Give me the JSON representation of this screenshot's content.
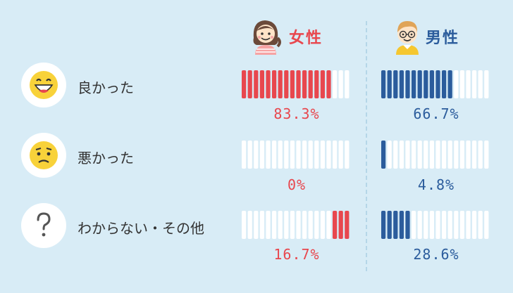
{
  "headers": {
    "female": "女性",
    "male": "男性"
  },
  "colors": {
    "female": "#e8474e",
    "male": "#2b5c9c",
    "empty": "#ffffff"
  },
  "chart_data": {
    "type": "bar",
    "categories": [
      "良かった",
      "悪かった",
      "わからない・その他"
    ],
    "category_icons": [
      "smiling-face-icon",
      "worried-face-icon",
      "question-mark-icon"
    ],
    "series": [
      {
        "name": "女性",
        "values": [
          83.3,
          0,
          16.7
        ],
        "labels": [
          "83.3%",
          "0%",
          "16.7%"
        ]
      },
      {
        "name": "男性",
        "values": [
          66.7,
          4.8,
          28.6
        ],
        "labels": [
          "66.7%",
          "4.8%",
          "28.6%"
        ]
      }
    ],
    "ylim": [
      0,
      100
    ],
    "segments_per_bar": 18
  }
}
